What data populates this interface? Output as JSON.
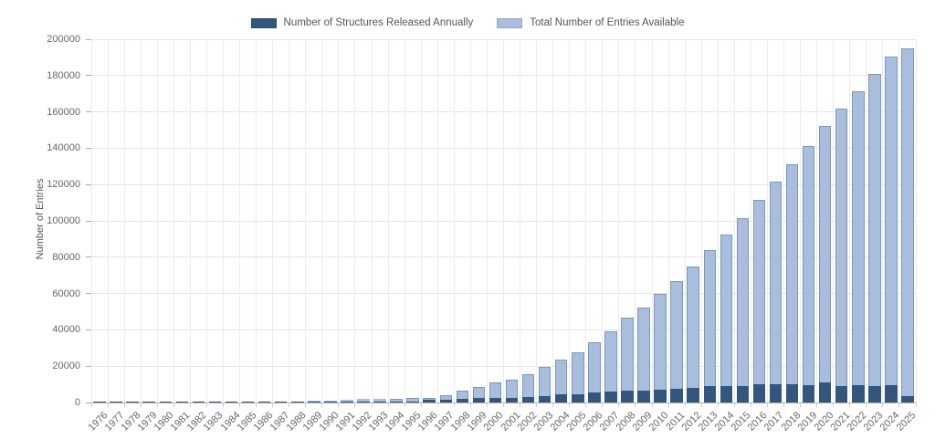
{
  "chart_data": {
    "type": "bar",
    "title": "",
    "xlabel": "",
    "ylabel": "Number of Entries",
    "ylim": [
      0,
      200000
    ],
    "ytick_step": 20000,
    "yticks": [
      0,
      20000,
      40000,
      60000,
      80000,
      100000,
      120000,
      140000,
      160000,
      180000,
      200000
    ],
    "grid": true,
    "legend_position": "top",
    "overlay": true,
    "categories": [
      "1976",
      "1977",
      "1978",
      "1979",
      "1980",
      "1981",
      "1982",
      "1983",
      "1984",
      "1985",
      "1986",
      "1987",
      "1988",
      "1989",
      "1990",
      "1991",
      "1992",
      "1993",
      "1994",
      "1995",
      "1996",
      "1997",
      "1998",
      "1999",
      "2000",
      "2001",
      "2002",
      "2003",
      "2004",
      "2005",
      "2006",
      "2007",
      "2008",
      "2009",
      "2010",
      "2011",
      "2012",
      "2013",
      "2014",
      "2015",
      "2016",
      "2017",
      "2018",
      "2019",
      "2020",
      "2021",
      "2022",
      "2023",
      "2024",
      "2025"
    ],
    "series": [
      {
        "name": "Number of Structures Released Annually",
        "color": "#33567e",
        "values": [
          13,
          64,
          30,
          34,
          32,
          23,
          36,
          54,
          36,
          51,
          79,
          78,
          116,
          192,
          242,
          300,
          380,
          420,
          480,
          650,
          1350,
          1700,
          2000,
          2350,
          2700,
          2700,
          3000,
          3600,
          4500,
          4700,
          5300,
          5900,
          6400,
          6500,
          7200,
          7500,
          8000,
          9200,
          9200,
          9000,
          10000,
          10100,
          9800,
          9700,
          11100,
          9000,
          9500,
          9000,
          9500,
          3500
        ]
      },
      {
        "name": "Total Number of Entries Available",
        "color": "#a9bedc",
        "values": [
          13,
          77,
          107,
          141,
          173,
          196,
          232,
          286,
          322,
          373,
          452,
          530,
          646,
          838,
          1080,
          1380,
          1760,
          1900,
          2100,
          2400,
          2700,
          4000,
          6400,
          8400,
          10900,
          12600,
          15600,
          19400,
          23500,
          27700,
          33200,
          39300,
          46600,
          52400,
          60000,
          66700,
          75000,
          84000,
          92600,
          101500,
          111400,
          121400,
          131400,
          141200,
          152100,
          161700,
          171400,
          181100,
          190600,
          194800
        ]
      }
    ],
    "colors": {
      "grid": "#e4e4e4",
      "axis": "#aaaaaa",
      "tick_text": "#666666",
      "label_text": "#555555"
    }
  }
}
